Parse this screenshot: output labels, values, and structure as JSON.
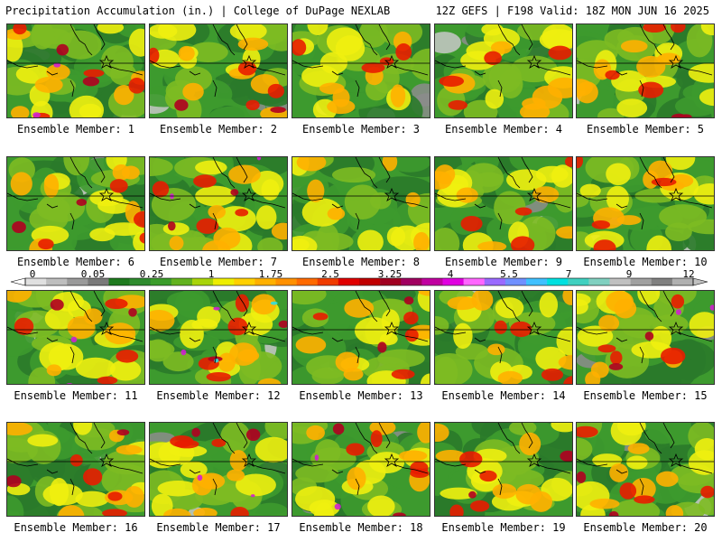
{
  "header": {
    "left": "Precipitation Accumulation (in.) | College of DuPage NEXLAB",
    "right": "12Z GEFS | F198 Valid: 18Z MON JUN 16 2025"
  },
  "members": [
    {
      "label": "Ensemble Member: 1",
      "max_level": 4,
      "seed": 11
    },
    {
      "label": "Ensemble Member: 2",
      "max_level": 3,
      "seed": 23
    },
    {
      "label": "Ensemble Member: 3",
      "max_level": 2,
      "seed": 37
    },
    {
      "label": "Ensemble Member: 4",
      "max_level": 2,
      "seed": 41
    },
    {
      "label": "Ensemble Member: 5",
      "max_level": 3,
      "seed": 53
    },
    {
      "label": "Ensemble Member: 6",
      "max_level": 3,
      "seed": 61
    },
    {
      "label": "Ensemble Member: 7",
      "max_level": 4,
      "seed": 73
    },
    {
      "label": "Ensemble Member: 8",
      "max_level": 1,
      "seed": 89
    },
    {
      "label": "Ensemble Member: 9",
      "max_level": 2,
      "seed": 97
    },
    {
      "label": "Ensemble Member: 10",
      "max_level": 2,
      "seed": 101
    },
    {
      "label": "Ensemble Member: 11",
      "max_level": 4,
      "seed": 113
    },
    {
      "label": "Ensemble Member: 12",
      "max_level": 5,
      "seed": 127
    },
    {
      "label": "Ensemble Member: 13",
      "max_level": 3,
      "seed": 131
    },
    {
      "label": "Ensemble Member: 14",
      "max_level": 2,
      "seed": 149
    },
    {
      "label": "Ensemble Member: 15",
      "max_level": 4,
      "seed": 157
    },
    {
      "label": "Ensemble Member: 16",
      "max_level": 3,
      "seed": 163
    },
    {
      "label": "Ensemble Member: 17",
      "max_level": 4,
      "seed": 179
    },
    {
      "label": "Ensemble Member: 18",
      "max_level": 4,
      "seed": 181
    },
    {
      "label": "Ensemble Member: 19",
      "max_level": 3,
      "seed": 191
    },
    {
      "label": "Ensemble Member: 20",
      "max_level": 3,
      "seed": 197
    }
  ],
  "colorbar": {
    "tick_labels": [
      "0",
      "0.05",
      "0.25",
      "1",
      "1.75",
      "2.5",
      "3.25",
      "4",
      "5.5",
      "7",
      "9",
      "12"
    ],
    "colors": [
      "#e0e0e0",
      "#bebebe",
      "#9a9a9a",
      "#7a7a7a",
      "#1e7a1e",
      "#2e8b2e",
      "#3a9c2a",
      "#62b21e",
      "#a8d40a",
      "#eeee00",
      "#ffd000",
      "#ffb000",
      "#ff9000",
      "#ff6a00",
      "#f03c00",
      "#e00000",
      "#c00000",
      "#a00020",
      "#a00060",
      "#c000a0",
      "#e000e0",
      "#ff66ff",
      "#9a6aff",
      "#7090ff",
      "#40c0ff",
      "#00e0e0",
      "#40d0c0",
      "#80d0c0",
      "#c0c0c0",
      "#a0a0a0",
      "#808080",
      "#b0b0b0"
    ]
  },
  "palette": {
    "grey_light": "#c8c8c8",
    "grey_dark": "#8c8c8c",
    "green_dark": "#2a7a2a",
    "green": "#3d9a2e",
    "green_light": "#7dbb22",
    "yellow": "#f0ef10",
    "orange": "#ffb000",
    "red": "#e81c00",
    "dark_red": "#b00020",
    "magenta": "#d020d0",
    "cyan": "#30e0e0"
  }
}
